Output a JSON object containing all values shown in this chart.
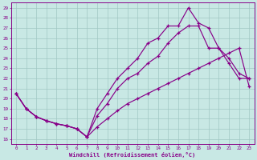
{
  "xlabel": "Windchill (Refroidissement éolien,°C)",
  "bg_color": "#c8e8e4",
  "line_color": "#880088",
  "grid_color": "#a0c8c4",
  "ylim_min": 15.5,
  "ylim_max": 29.5,
  "xlim_min": -0.5,
  "xlim_max": 23.5,
  "yticks": [
    16,
    17,
    18,
    19,
    20,
    21,
    22,
    23,
    24,
    25,
    26,
    27,
    28,
    29
  ],
  "xticks": [
    0,
    1,
    2,
    3,
    4,
    5,
    6,
    7,
    8,
    9,
    10,
    11,
    12,
    13,
    14,
    15,
    16,
    17,
    18,
    19,
    20,
    21,
    22,
    23
  ],
  "line1_x": [
    0,
    1,
    2,
    3,
    4,
    5,
    6,
    7,
    8,
    9,
    10,
    11,
    12,
    13,
    14,
    15,
    16,
    17,
    18,
    19,
    20,
    21,
    22,
    23
  ],
  "line1_y": [
    20.5,
    19.0,
    18.2,
    17.8,
    17.5,
    17.3,
    17.0,
    16.2,
    17.2,
    18.0,
    18.8,
    19.5,
    20.0,
    20.5,
    21.0,
    21.5,
    22.0,
    22.5,
    23.0,
    23.5,
    24.0,
    24.5,
    25.0,
    21.2
  ],
  "line2_x": [
    0,
    1,
    2,
    3,
    4,
    5,
    6,
    7,
    8,
    9,
    10,
    11,
    12,
    13,
    14,
    15,
    16,
    17,
    18,
    19,
    20,
    21,
    22,
    23
  ],
  "line2_y": [
    20.5,
    19.0,
    18.2,
    17.8,
    17.5,
    17.3,
    17.0,
    16.2,
    18.3,
    19.5,
    21.0,
    22.0,
    22.5,
    23.5,
    24.2,
    25.5,
    26.5,
    27.2,
    27.2,
    25.0,
    25.0,
    23.5,
    22.0,
    22.0
  ],
  "line3_x": [
    0,
    1,
    2,
    3,
    4,
    5,
    6,
    7,
    8,
    9,
    10,
    11,
    12,
    13,
    14,
    15,
    16,
    17,
    18,
    19,
    20,
    21,
    22,
    23
  ],
  "line3_y": [
    20.5,
    19.0,
    18.2,
    17.8,
    17.5,
    17.3,
    17.0,
    16.2,
    19.0,
    20.5,
    22.0,
    23.0,
    24.0,
    25.5,
    26.0,
    27.2,
    27.2,
    29.0,
    27.5,
    27.0,
    25.0,
    24.0,
    22.5,
    22.0
  ]
}
